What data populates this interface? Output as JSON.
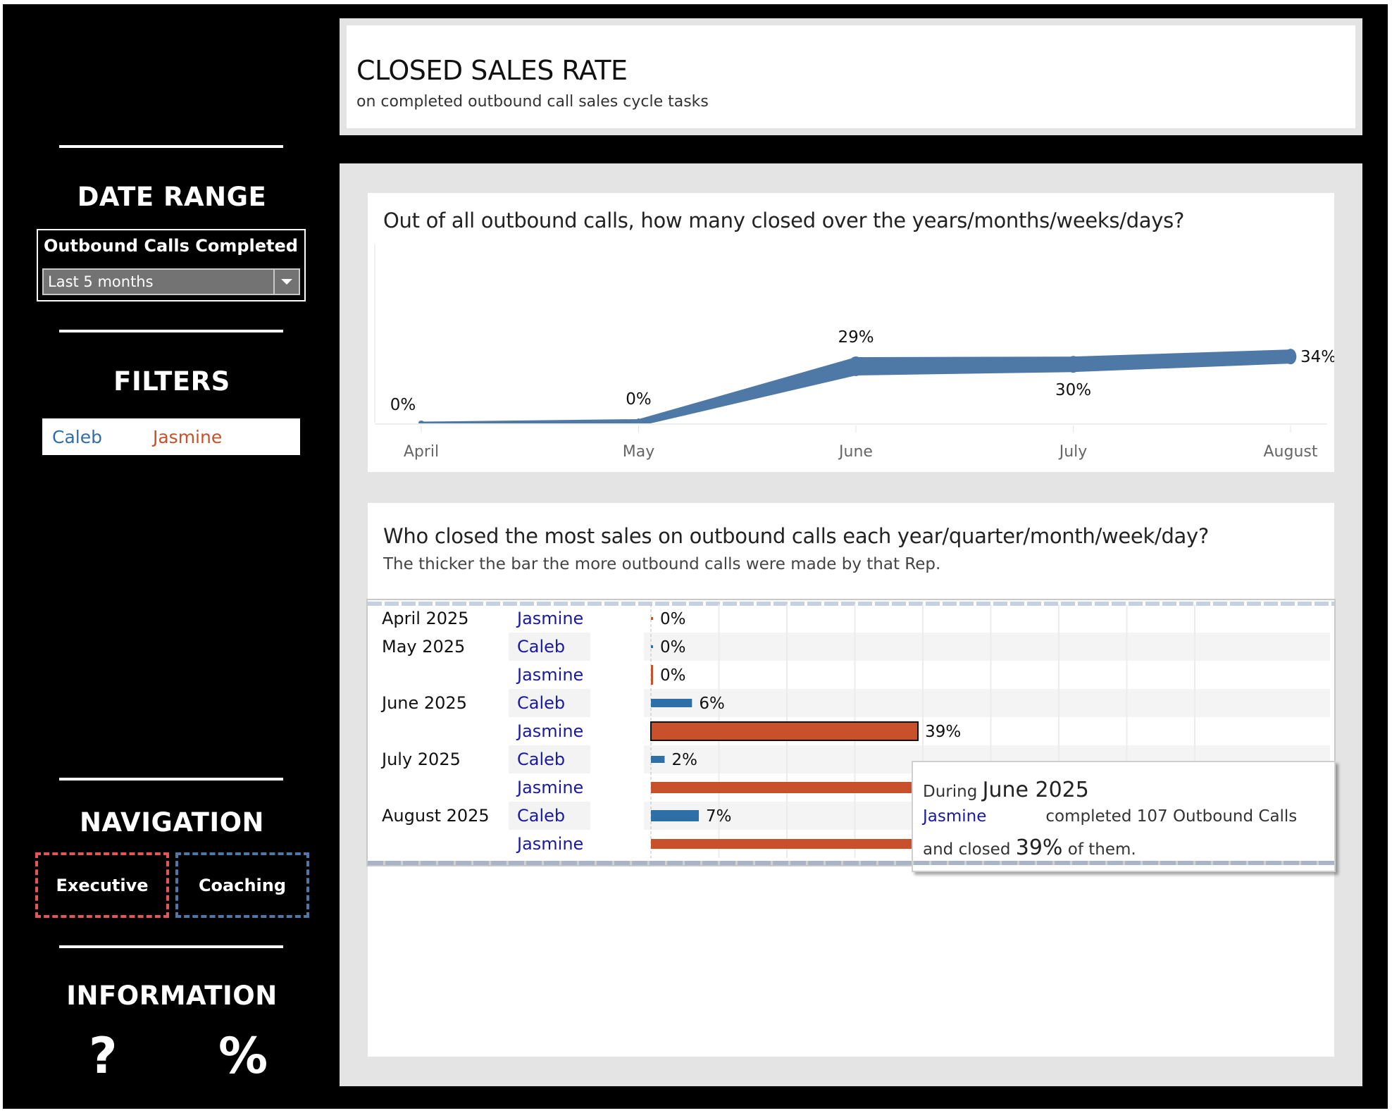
{
  "sidebar": {
    "date_range": {
      "heading": "DATE RANGE",
      "label": "Outbound Calls Completed",
      "selected": "Last 5 months"
    },
    "filters": {
      "heading": "FILTERS",
      "items": [
        {
          "label": "Caleb",
          "color": "#2f6fa8"
        },
        {
          "label": "Jasmine",
          "color": "#c8502a"
        }
      ]
    },
    "navigation": {
      "heading": "NAVIGATION",
      "buttons": [
        {
          "label": "Executive",
          "color": "#e15759"
        },
        {
          "label": "Coaching",
          "color": "#4e79a7"
        }
      ]
    },
    "information": {
      "heading": "INFORMATION",
      "icons": [
        {
          "name": "help-icon",
          "glyph": "?"
        },
        {
          "name": "percent-icon",
          "glyph": "%"
        }
      ]
    }
  },
  "header": {
    "title": "CLOSED SALES RATE",
    "subtitle": "on completed outbound call sales cycle tasks"
  },
  "colors": {
    "line": "#4e79a7",
    "caleb": "#2f6fa8",
    "jasmine": "#c8502a",
    "rep_text": "#1a1aa0"
  },
  "chart_data": [
    {
      "type": "line",
      "title": "Out of all outbound calls, how many closed over the years/months/weeks/days?",
      "xlabel": "",
      "ylabel": "",
      "categories": [
        "April",
        "May",
        "June",
        "July",
        "August"
      ],
      "values": [
        0,
        0,
        29,
        30,
        34
      ],
      "labels": [
        "0%",
        "0%",
        "29%",
        "30%",
        "34%"
      ],
      "ylim": [
        0,
        100
      ],
      "grid": false,
      "note": "line thickness encodes call volume"
    },
    {
      "type": "bar",
      "orientation": "horizontal",
      "title": "Who closed the most sales on outbound calls each year/quarter/month/week/day?",
      "subtitle": "The thicker the bar the more outbound calls were made by that Rep.",
      "xlim": [
        0,
        80
      ],
      "rows": [
        {
          "period": "April 2025",
          "rep": "Jasmine",
          "value": 0,
          "label": "0%"
        },
        {
          "period": "May 2025",
          "rep": "Caleb",
          "value": 0,
          "label": "0%"
        },
        {
          "period": "",
          "rep": "Jasmine",
          "value": 0,
          "label": "0%"
        },
        {
          "period": "June 2025",
          "rep": "Caleb",
          "value": 6,
          "label": "6%"
        },
        {
          "period": "",
          "rep": "Jasmine",
          "value": 39,
          "label": "39%",
          "selected": true
        },
        {
          "period": "July 2025",
          "rep": "Caleb",
          "value": 2,
          "label": "2%"
        },
        {
          "period": "",
          "rep": "Jasmine",
          "value": null,
          "label": ""
        },
        {
          "period": "August 2025",
          "rep": "Caleb",
          "value": 7,
          "label": "7%"
        },
        {
          "period": "",
          "rep": "Jasmine",
          "value": null,
          "label": ""
        }
      ]
    }
  ],
  "tooltip": {
    "prefix": "During",
    "period": "June 2025",
    "rep": "Jasmine",
    "calls_text": "completed 107 Outbound Calls",
    "closed_prefix": "and closed",
    "closed_value": "39%",
    "closed_suffix": "of them."
  }
}
